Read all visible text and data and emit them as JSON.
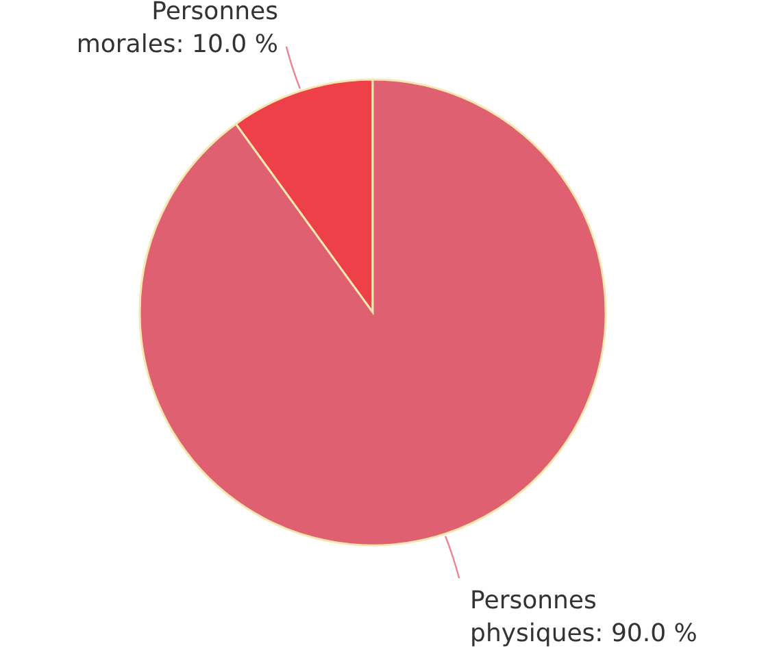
{
  "chart_data": {
    "type": "pie",
    "categories": [
      "Personnes morales",
      "Personnes physiques"
    ],
    "values": [
      10.0,
      90.0
    ],
    "colors": [
      "#ee4048",
      "#df6070"
    ],
    "value_labels": [
      "10.0 %",
      "90.0 %"
    ]
  }
}
